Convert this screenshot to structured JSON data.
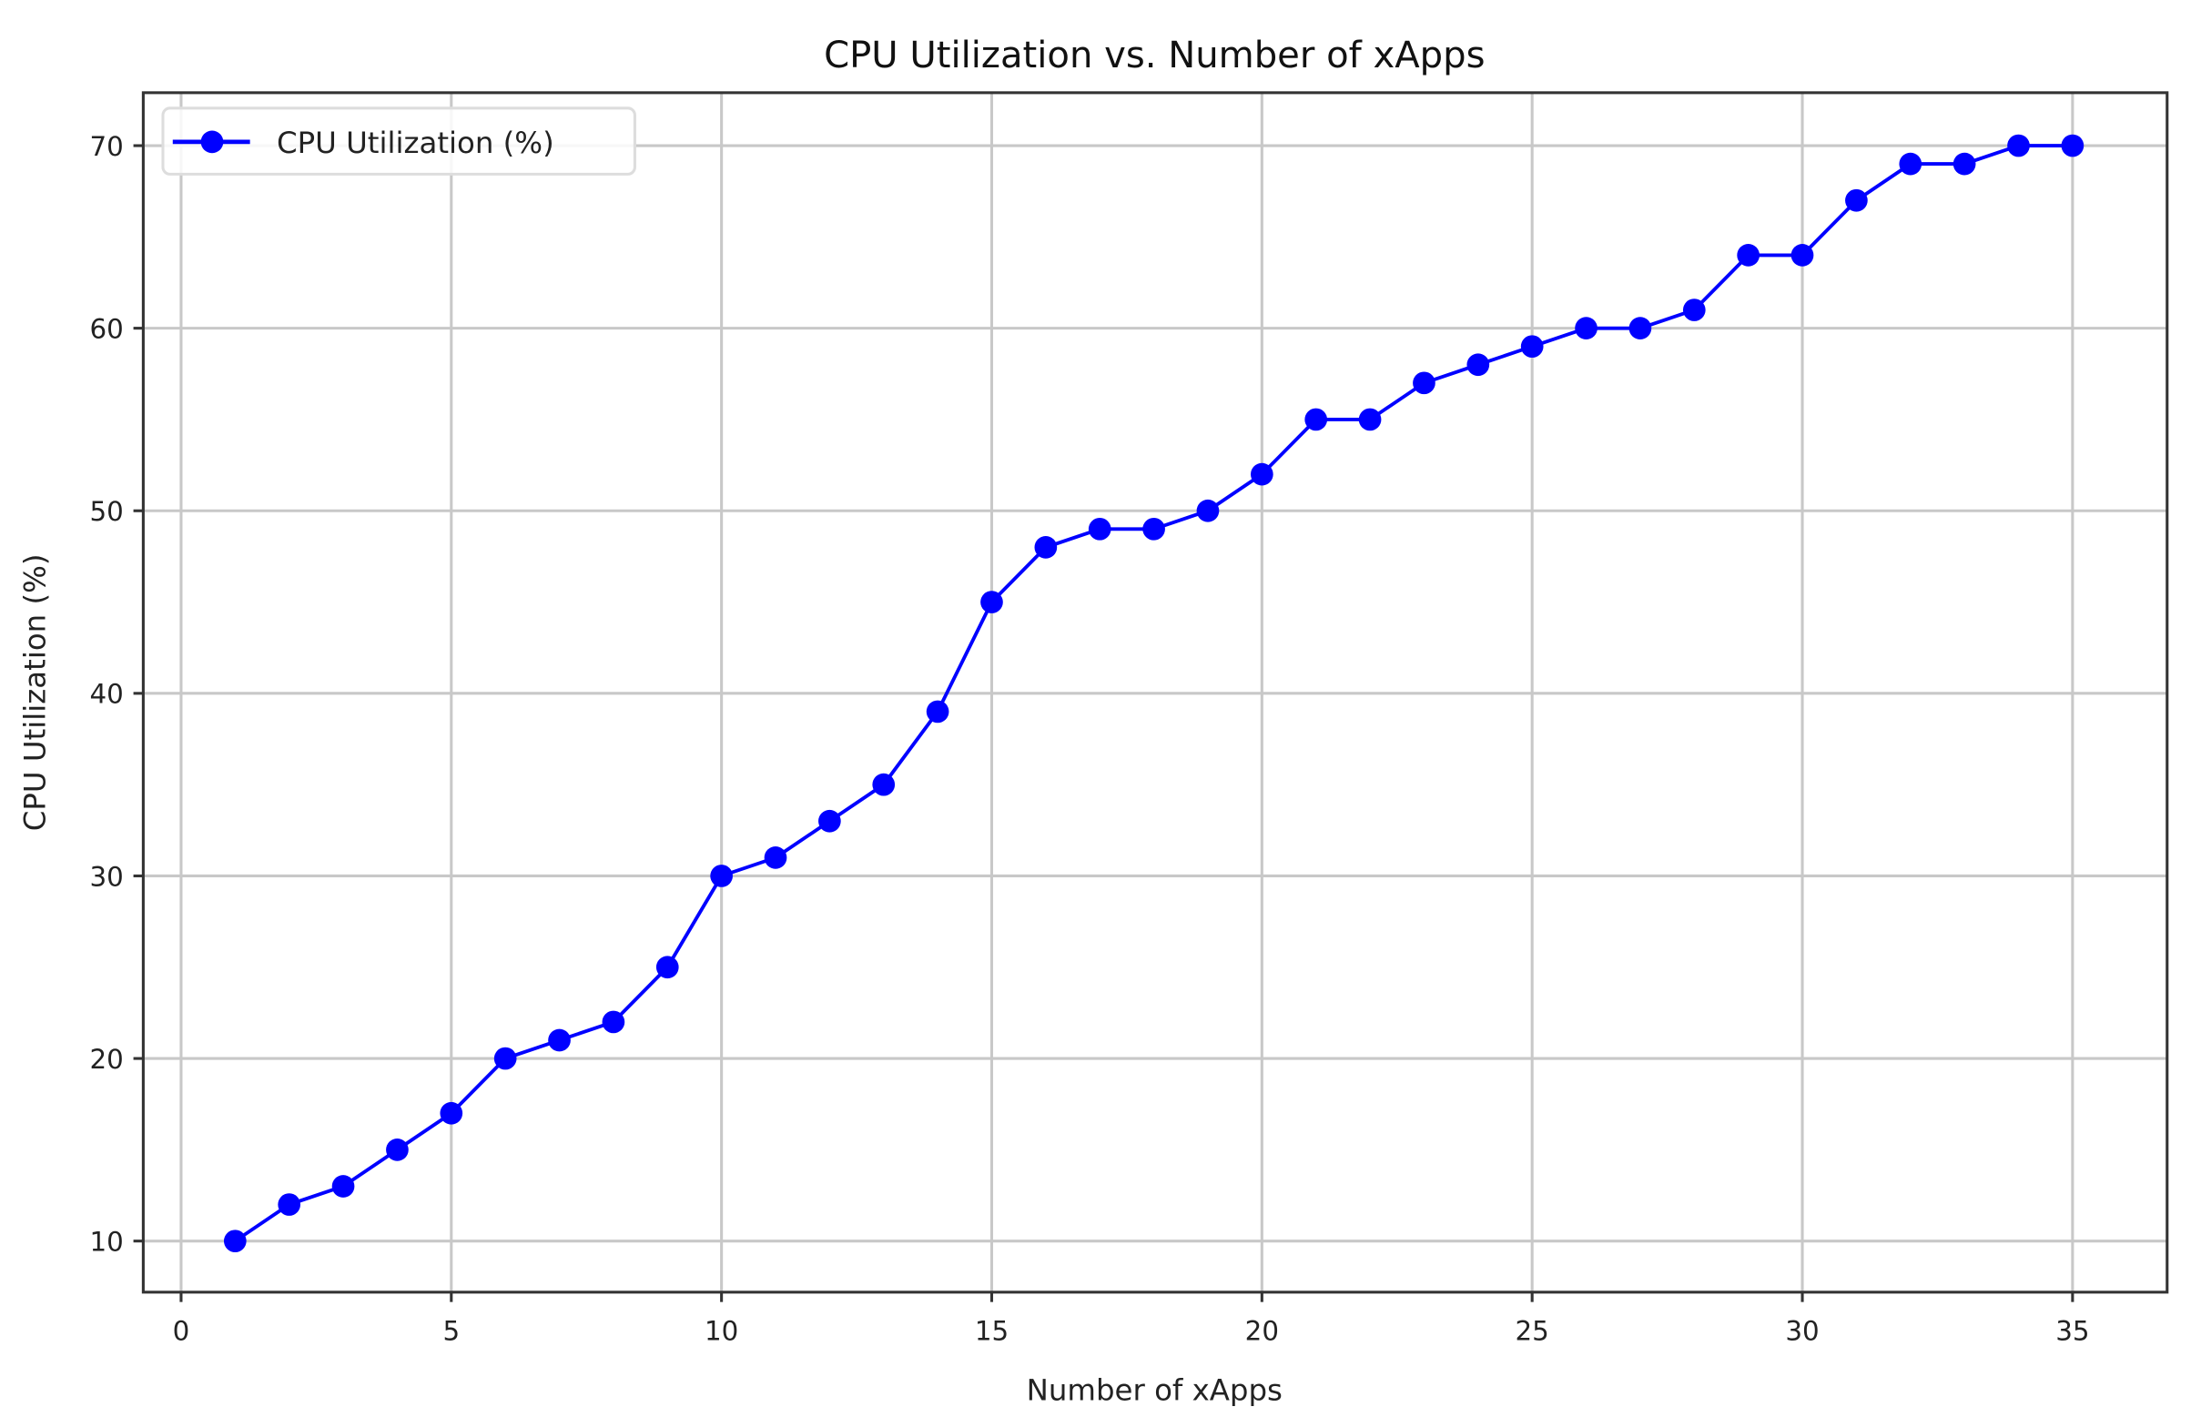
{
  "chart_data": {
    "type": "line",
    "title": "CPU Utilization vs. Number of xApps",
    "xlabel": "Number of xApps",
    "ylabel": "CPU Utilization (%)",
    "xlim": [
      -0.7,
      36.75
    ],
    "ylim": [
      7.2,
      72.9
    ],
    "xticks": [
      0,
      5,
      10,
      15,
      20,
      25,
      30,
      35
    ],
    "yticks": [
      10,
      20,
      30,
      40,
      50,
      60,
      70
    ],
    "grid": true,
    "legend_position": "top-left",
    "series": [
      {
        "name": "CPU Utilization (%)",
        "color": "#0000ff",
        "marker": "circle",
        "x": [
          1,
          2,
          3,
          4,
          5,
          6,
          7,
          8,
          9,
          10,
          11,
          12,
          13,
          14,
          15,
          16,
          17,
          18,
          19,
          20,
          21,
          22,
          23,
          24,
          25,
          26,
          27,
          28,
          29,
          30,
          31,
          32,
          33,
          34,
          35
        ],
        "y": [
          10,
          12,
          13,
          15,
          17,
          20,
          21,
          22,
          25,
          30,
          31,
          33,
          35,
          39,
          45,
          48,
          49,
          49,
          50,
          52,
          55,
          55,
          57,
          58,
          59,
          60,
          60,
          61,
          64,
          64,
          67,
          69,
          69,
          70,
          70
        ]
      }
    ]
  }
}
